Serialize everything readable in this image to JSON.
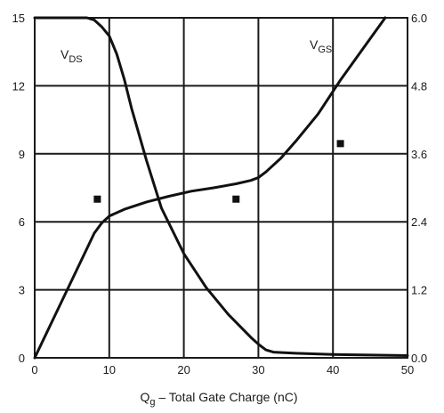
{
  "chart_data": {
    "type": "line",
    "xlabel_main": "Q",
    "xlabel_sub": "g",
    "xlabel_rest": " – Total Gate Charge (nC)",
    "xlim": [
      0,
      50
    ],
    "ylim_left": [
      0,
      15
    ],
    "ylim_right": [
      0,
      6.0
    ],
    "x_ticks": [
      "0",
      "10",
      "20",
      "30",
      "40",
      "50"
    ],
    "y_ticks_left": [
      "0",
      "3",
      "6",
      "9",
      "12",
      "15"
    ],
    "y_ticks_right": [
      "0.0",
      "1.2",
      "2.4",
      "3.6",
      "4.8",
      "6.0"
    ],
    "grid": true,
    "series": [
      {
        "name_main": "V",
        "name_sub": "DS",
        "axis": "left",
        "x": [
          0,
          7,
          8,
          9,
          10,
          11,
          12,
          13,
          15,
          17,
          20,
          23,
          26,
          29,
          30,
          31,
          32,
          35,
          40,
          45,
          50
        ],
        "y": [
          15,
          15,
          14.9,
          14.6,
          14.2,
          13.4,
          12.3,
          11,
          8.7,
          6.6,
          4.6,
          3.1,
          1.9,
          0.9,
          0.6,
          0.35,
          0.25,
          0.2,
          0.15,
          0.12,
          0.1
        ]
      },
      {
        "name_main": "V",
        "name_sub": "GS",
        "axis": "right",
        "x": [
          0,
          4,
          8,
          9,
          10,
          12,
          15,
          18,
          21,
          24,
          27,
          29,
          30,
          31,
          33,
          35,
          38,
          41,
          44,
          47
        ],
        "y": [
          0,
          1.1,
          2.2,
          2.38,
          2.5,
          2.62,
          2.75,
          2.85,
          2.94,
          3.0,
          3.07,
          3.13,
          3.18,
          3.28,
          3.52,
          3.82,
          4.3,
          4.9,
          5.45,
          6.0
        ]
      }
    ],
    "markers": [
      {
        "x": 8.4,
        "y": 7.0
      },
      {
        "x": 27.0,
        "y": 7.0
      },
      {
        "x": 41.0,
        "y": 9.45
      }
    ]
  }
}
